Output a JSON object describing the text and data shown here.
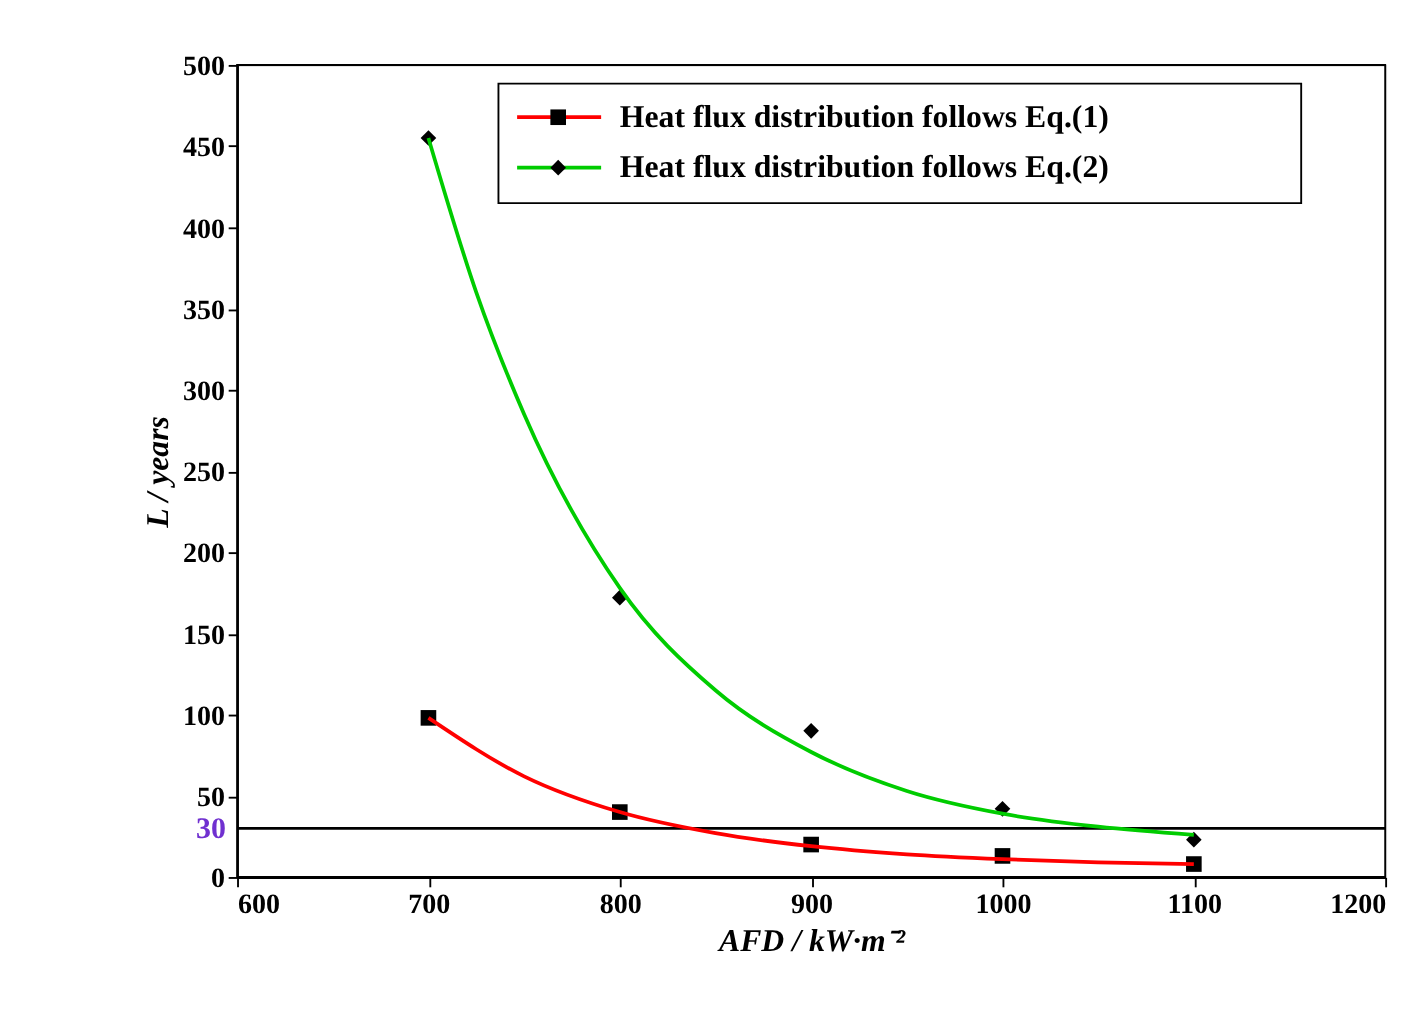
{
  "chart_data": {
    "type": "scatter",
    "xlabel": "AFD / kW·m⁻²",
    "ylabel": "L / years",
    "x": [
      700,
      800,
      900,
      1000,
      1100
    ],
    "series": [
      {
        "name": "Heat flux distribution follows Eq.(1)",
        "color": "#000000",
        "marker": "square",
        "values": [
          98,
          40,
          20,
          13,
          8
        ]
      },
      {
        "name": "Heat flux distribution follows Eq.(2)",
        "color": "#000000",
        "marker": "diamond",
        "values": [
          455,
          172,
          90,
          42,
          23
        ]
      },
      {
        "type": "line",
        "color": "#ff0000",
        "marker": "none",
        "line_style": "solid",
        "x": [
          700,
          750,
          800,
          850,
          900,
          950,
          1000,
          1050,
          1100
        ],
        "values": [
          98,
          62,
          40,
          27,
          19,
          14,
          11,
          9,
          8
        ]
      },
      {
        "type": "line",
        "color": "#00cc00",
        "marker": "none",
        "line_style": "solid",
        "x": [
          700,
          725,
          750,
          800,
          850,
          900,
          950,
          1000,
          1050,
          1100
        ],
        "values": [
          455,
          360,
          285,
          178,
          115,
          77,
          53,
          39,
          31,
          26
        ]
      }
    ],
    "xlim": [
      600,
      1200
    ],
    "xticks": [
      600,
      700,
      800,
      900,
      1000,
      1100,
      1200
    ],
    "ylim": [
      0,
      500
    ],
    "yticks": [
      0,
      50,
      100,
      150,
      200,
      250,
      300,
      350,
      400,
      450,
      500
    ],
    "ref_lines": [
      {
        "axis": "y",
        "value": 30,
        "label": "30",
        "color": "#000000"
      }
    ],
    "grid": false,
    "legend": "top right"
  }
}
